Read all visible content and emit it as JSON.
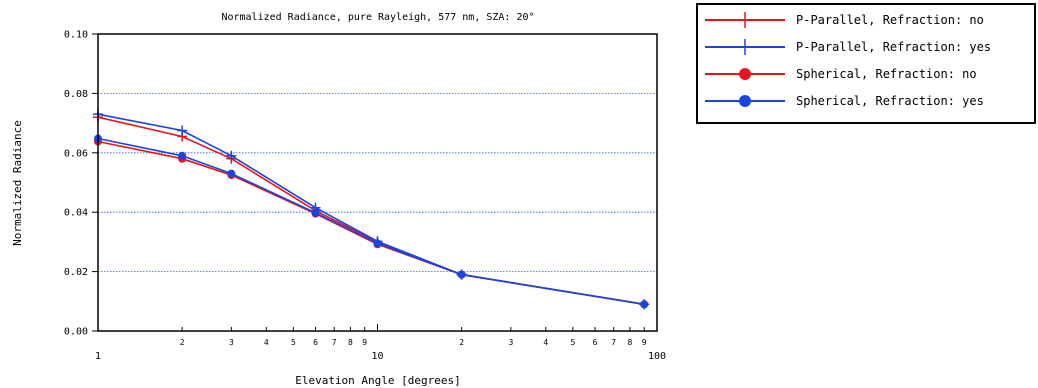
{
  "chart_data": {
    "type": "line",
    "title": "Normalized Radiance, pure Rayleigh, 577 nm, SZA: 20°",
    "xlabel": "Elevation Angle [degrees]",
    "ylabel": "Normalized Radiance",
    "xscale": "log",
    "xlim": [
      1,
      100
    ],
    "ylim": [
      0,
      0.1
    ],
    "grid": "horizontal dotted, blue",
    "legend_position": "outside-top-right",
    "x_major_ticks": [
      "1",
      "10",
      "100"
    ],
    "x_minor_ticks": [
      "2",
      "3",
      "4",
      "5",
      "6",
      "7",
      "8",
      "9",
      "2",
      "3",
      "4",
      "5",
      "6",
      "7",
      "8",
      "9"
    ],
    "y_ticks": [
      "0.00",
      "0.02",
      "0.04",
      "0.06",
      "0.08",
      "0.10"
    ],
    "series": [
      {
        "name": "P-Parallel, Refraction: no",
        "color": "#e8141c",
        "marker": "plus",
        "x": [
          1,
          2,
          3,
          6,
          10,
          20,
          90
        ],
        "y": [
          0.072,
          0.0655,
          0.058,
          0.0405,
          0.03,
          0.019,
          0.009
        ]
      },
      {
        "name": "P-Parallel, Refraction: yes",
        "color": "#1a44e0",
        "marker": "plus",
        "x": [
          1,
          2,
          3,
          6,
          10,
          20,
          90
        ],
        "y": [
          0.073,
          0.0675,
          0.059,
          0.0415,
          0.0302,
          0.019,
          0.009
        ]
      },
      {
        "name": "Spherical, Refraction: no",
        "color": "#e8141c",
        "marker": "circle",
        "x": [
          1,
          2,
          3,
          6,
          10,
          20,
          90
        ],
        "y": [
          0.0638,
          0.058,
          0.0525,
          0.0395,
          0.0292,
          0.019,
          0.009
        ]
      },
      {
        "name": "Spherical, Refraction: yes",
        "color": "#1a44e0",
        "marker": "circle",
        "x": [
          1,
          2,
          3,
          6,
          10,
          20,
          90
        ],
        "y": [
          0.0648,
          0.059,
          0.053,
          0.0398,
          0.0295,
          0.019,
          0.009
        ]
      }
    ]
  }
}
